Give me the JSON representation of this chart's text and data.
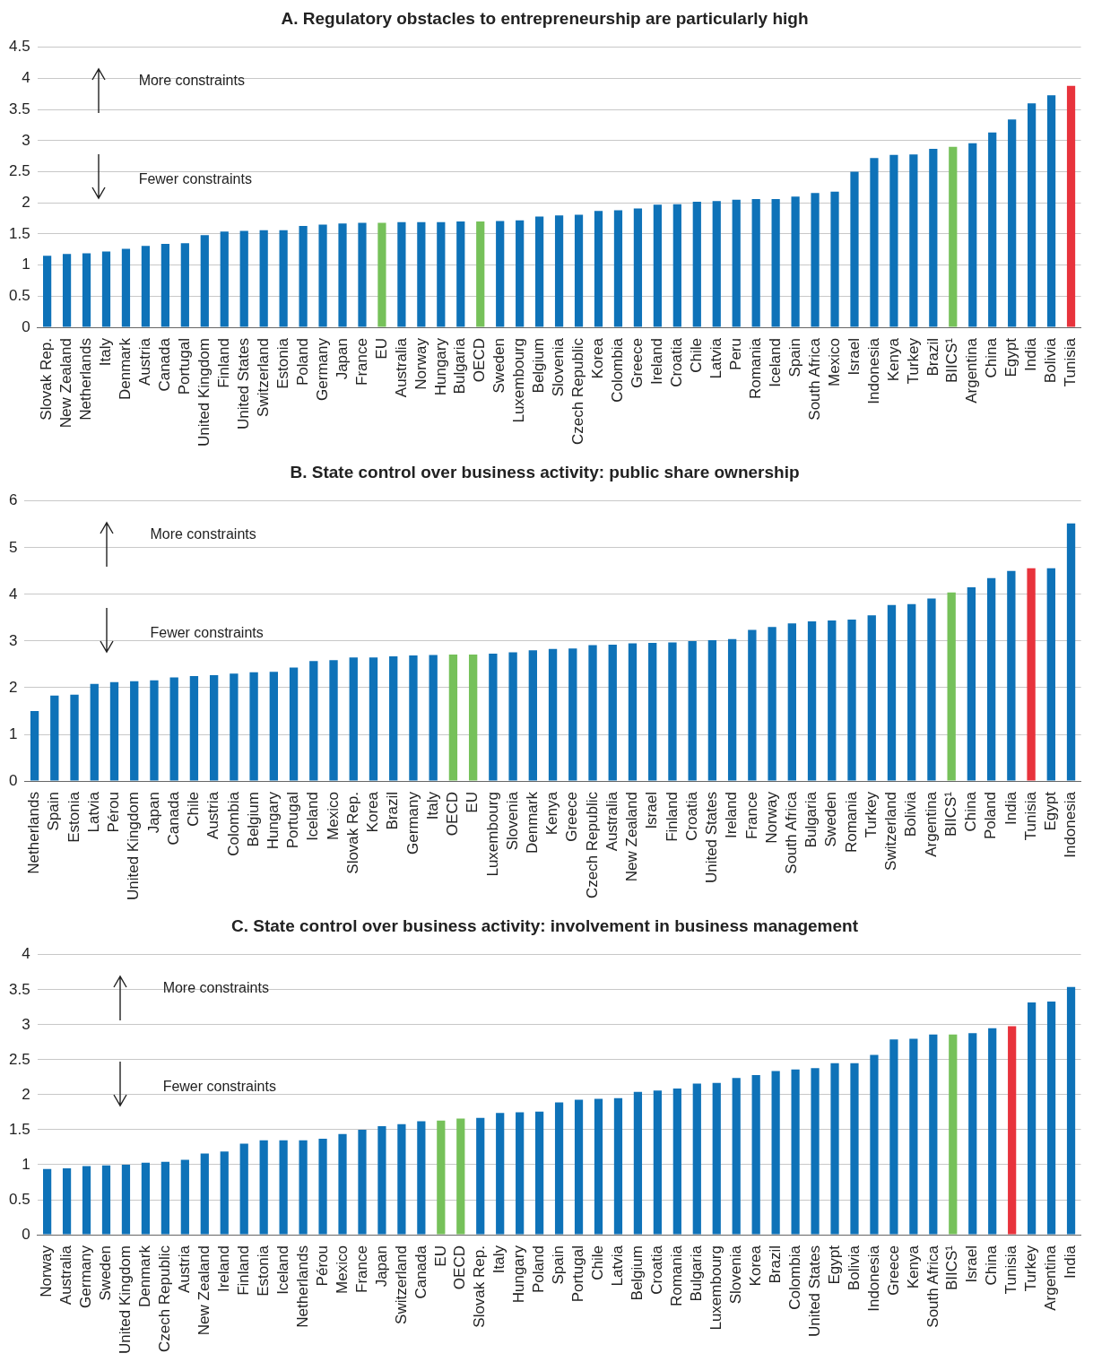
{
  "chart_data": [
    {
      "type": "bar",
      "title": "A. Regulatory obstacles to entrepreneurship are particularly high",
      "annotations": [
        "More constraints",
        "Fewer constraints"
      ],
      "grid": "y",
      "legend": false,
      "categories": [
        "Slovak Rep.",
        "New Zealand",
        "Netherlands",
        "Italy",
        "Denmark",
        "Austria",
        "Canada",
        "Portugal",
        "United Kingdom",
        "Finland",
        "United States",
        "Switzerland",
        "Estonia",
        "Poland",
        "Germany",
        "Japan",
        "France",
        "EU",
        "Australia",
        "Norway",
        "Hungary",
        "Bulgaria",
        "OECD",
        "Sweden",
        "Luxembourg",
        "Belgium",
        "Slovenia",
        "Czech Republic",
        "Korea",
        "Colombia",
        "Greece",
        "Ireland",
        "Croatia",
        "Chile",
        "Latvia",
        "Peru",
        "Romania",
        "Iceland",
        "Spain",
        "South Africa",
        "Mexico",
        "Israel",
        "Indonesia",
        "Kenya",
        "Turkey",
        "Brazil",
        "BIICS¹",
        "Argentina",
        "China",
        "Egypt",
        "India",
        "Bolivia",
        "Tunisia"
      ],
      "values": [
        1.15,
        1.18,
        1.19,
        1.22,
        1.26,
        1.31,
        1.34,
        1.35,
        1.48,
        1.54,
        1.55,
        1.56,
        1.56,
        1.63,
        1.65,
        1.67,
        1.68,
        1.68,
        1.69,
        1.69,
        1.69,
        1.7,
        1.7,
        1.71,
        1.72,
        1.78,
        1.8,
        1.81,
        1.87,
        1.88,
        1.91,
        1.97,
        1.98,
        2.02,
        2.03,
        2.05,
        2.06,
        2.06,
        2.1,
        2.16,
        2.18,
        2.5,
        2.72,
        2.77,
        2.78,
        2.87,
        2.9,
        2.96,
        3.13,
        3.34,
        3.6,
        3.73,
        3.88
      ],
      "colors": [
        "#0e72b8",
        "#0e72b8",
        "#0e72b8",
        "#0e72b8",
        "#0e72b8",
        "#0e72b8",
        "#0e72b8",
        "#0e72b8",
        "#0e72b8",
        "#0e72b8",
        "#0e72b8",
        "#0e72b8",
        "#0e72b8",
        "#0e72b8",
        "#0e72b8",
        "#0e72b8",
        "#0e72b8",
        "#76c15a",
        "#0e72b8",
        "#0e72b8",
        "#0e72b8",
        "#0e72b8",
        "#76c15a",
        "#0e72b8",
        "#0e72b8",
        "#0e72b8",
        "#0e72b8",
        "#0e72b8",
        "#0e72b8",
        "#0e72b8",
        "#0e72b8",
        "#0e72b8",
        "#0e72b8",
        "#0e72b8",
        "#0e72b8",
        "#0e72b8",
        "#0e72b8",
        "#0e72b8",
        "#0e72b8",
        "#0e72b8",
        "#0e72b8",
        "#0e72b8",
        "#0e72b8",
        "#0e72b8",
        "#0e72b8",
        "#0e72b8",
        "#76c15a",
        "#0e72b8",
        "#0e72b8",
        "#0e72b8",
        "#0e72b8",
        "#0e72b8",
        "#e8333c"
      ],
      "ylim": [
        0,
        4.5
      ],
      "yticks": [
        0,
        0.5,
        1,
        1.5,
        2,
        2.5,
        3,
        3.5,
        4,
        4.5
      ]
    },
    {
      "type": "bar",
      "title": "B. State control over business activity: public share ownership",
      "annotations": [
        "More constraints",
        "Fewer constraints"
      ],
      "grid": "y",
      "legend": false,
      "categories": [
        "Netherlands",
        "Spain",
        "Estonia",
        "Latvia",
        "Pérou",
        "United Kingdom",
        "Japan",
        "Canada",
        "Chile",
        "Austria",
        "Colombia",
        "Belgium",
        "Hungary",
        "Portugal",
        "Iceland",
        "Mexico",
        "Slovak Rep.",
        "Korea",
        "Brazil",
        "Germany",
        "Italy",
        "OECD",
        "EU",
        "Luxembourg",
        "Slovenia",
        "Denmark",
        "Kenya",
        "Greece",
        "Czech Republic",
        "Australia",
        "New Zealand",
        "Israel",
        "Finland",
        "Croatia",
        "United States",
        "Ireland",
        "France",
        "Norway",
        "South Africa",
        "Bulgaria",
        "Sweden",
        "Romania",
        "Turkey",
        "Switzerland",
        "Bolivia",
        "Argentina",
        "BIICS¹",
        "China",
        "Poland",
        "India",
        "Tunisia",
        "Egypt",
        "Indonesia"
      ],
      "values": [
        1.5,
        1.83,
        1.85,
        2.08,
        2.12,
        2.14,
        2.16,
        2.22,
        2.25,
        2.27,
        2.3,
        2.33,
        2.34,
        2.43,
        2.57,
        2.59,
        2.65,
        2.65,
        2.67,
        2.69,
        2.7,
        2.71,
        2.71,
        2.73,
        2.76,
        2.8,
        2.83,
        2.84,
        2.91,
        2.92,
        2.95,
        2.96,
        2.97,
        3.0,
        3.02,
        3.04,
        3.24,
        3.3,
        3.38,
        3.42,
        3.44,
        3.46,
        3.55,
        3.77,
        3.79,
        3.91,
        4.04,
        4.15,
        4.35,
        4.5,
        4.56,
        4.56,
        5.52
      ],
      "colors": [
        "#0e72b8",
        "#0e72b8",
        "#0e72b8",
        "#0e72b8",
        "#0e72b8",
        "#0e72b8",
        "#0e72b8",
        "#0e72b8",
        "#0e72b8",
        "#0e72b8",
        "#0e72b8",
        "#0e72b8",
        "#0e72b8",
        "#0e72b8",
        "#0e72b8",
        "#0e72b8",
        "#0e72b8",
        "#0e72b8",
        "#0e72b8",
        "#0e72b8",
        "#0e72b8",
        "#76c15a",
        "#76c15a",
        "#0e72b8",
        "#0e72b8",
        "#0e72b8",
        "#0e72b8",
        "#0e72b8",
        "#0e72b8",
        "#0e72b8",
        "#0e72b8",
        "#0e72b8",
        "#0e72b8",
        "#0e72b8",
        "#0e72b8",
        "#0e72b8",
        "#0e72b8",
        "#0e72b8",
        "#0e72b8",
        "#0e72b8",
        "#0e72b8",
        "#0e72b8",
        "#0e72b8",
        "#0e72b8",
        "#0e72b8",
        "#0e72b8",
        "#76c15a",
        "#0e72b8",
        "#0e72b8",
        "#0e72b8",
        "#e8333c",
        "#0e72b8",
        "#0e72b8"
      ],
      "ylim": [
        0,
        6
      ],
      "yticks": [
        0,
        1,
        2,
        3,
        4,
        5,
        6
      ]
    },
    {
      "type": "bar",
      "title": "C. State control over business activity: involvement in business management",
      "annotations": [
        "More constraints",
        "Fewer constraints"
      ],
      "grid": "y",
      "legend": false,
      "categories": [
        "Norway",
        "Australia",
        "Germany",
        "Sweden",
        "United Kingdom",
        "Denmark",
        "Czech Republic",
        "Austria",
        "New Zealand",
        "Ireland",
        "Finland",
        "Estonia",
        "Iceland",
        "Netherlands",
        "Pérou",
        "Mexico",
        "France",
        "Japan",
        "Switzerland",
        "Canada",
        "EU",
        "OECD",
        "Slovak Rep.",
        "Italy",
        "Hungary",
        "Poland",
        "Spain",
        "Portugal",
        "Chile",
        "Latvia",
        "Belgium",
        "Croatia",
        "Romania",
        "Bulgaria",
        "Luxembourg",
        "Slovenia",
        "Korea",
        "Brazil",
        "Colombia",
        "United States",
        "Egypt",
        "Bolivia",
        "Indonesia",
        "Greece",
        "Kenya",
        "South Africa",
        "BIICS¹",
        "Israel",
        "China",
        "Tunisia",
        "Turkey",
        "Argentina",
        "India"
      ],
      "values": [
        0.94,
        0.95,
        0.98,
        0.99,
        1.0,
        1.03,
        1.04,
        1.07,
        1.16,
        1.19,
        1.3,
        1.35,
        1.35,
        1.35,
        1.37,
        1.44,
        1.5,
        1.55,
        1.58,
        1.62,
        1.63,
        1.66,
        1.67,
        1.74,
        1.75,
        1.76,
        1.89,
        1.93,
        1.94,
        1.95,
        2.04,
        2.06,
        2.09,
        2.16,
        2.17,
        2.24,
        2.28,
        2.34,
        2.36,
        2.38,
        2.45,
        2.45,
        2.57,
        2.79,
        2.8,
        2.86,
        2.86,
        2.88,
        2.95,
        2.98,
        3.32,
        3.33,
        3.54
      ],
      "colors": [
        "#0e72b8",
        "#0e72b8",
        "#0e72b8",
        "#0e72b8",
        "#0e72b8",
        "#0e72b8",
        "#0e72b8",
        "#0e72b8",
        "#0e72b8",
        "#0e72b8",
        "#0e72b8",
        "#0e72b8",
        "#0e72b8",
        "#0e72b8",
        "#0e72b8",
        "#0e72b8",
        "#0e72b8",
        "#0e72b8",
        "#0e72b8",
        "#0e72b8",
        "#76c15a",
        "#76c15a",
        "#0e72b8",
        "#0e72b8",
        "#0e72b8",
        "#0e72b8",
        "#0e72b8",
        "#0e72b8",
        "#0e72b8",
        "#0e72b8",
        "#0e72b8",
        "#0e72b8",
        "#0e72b8",
        "#0e72b8",
        "#0e72b8",
        "#0e72b8",
        "#0e72b8",
        "#0e72b8",
        "#0e72b8",
        "#0e72b8",
        "#0e72b8",
        "#0e72b8",
        "#0e72b8",
        "#0e72b8",
        "#0e72b8",
        "#0e72b8",
        "#76c15a",
        "#0e72b8",
        "#0e72b8",
        "#e8333c",
        "#0e72b8",
        "#0e72b8",
        "#0e72b8"
      ],
      "ylim": [
        0,
        4
      ],
      "yticks": [
        0,
        0.5,
        1,
        1.5,
        2,
        2.5,
        3,
        3.5,
        4
      ]
    }
  ]
}
